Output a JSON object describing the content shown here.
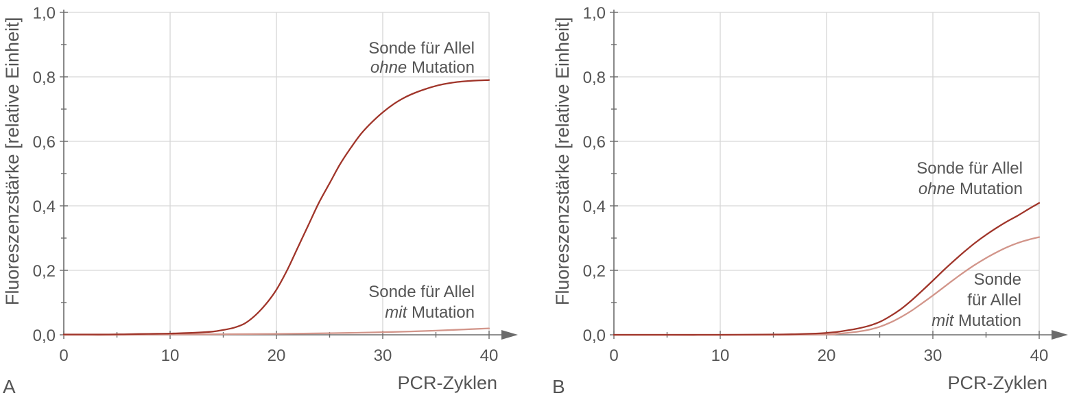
{
  "colors": {
    "axis": "#6b6b6b",
    "grid": "#d6d6d6",
    "text": "#555555",
    "series_ohne": "#a0352a",
    "series_mit": "#d2958a"
  },
  "chart_data": [
    {
      "type": "line",
      "panel_label": "A",
      "xlabel": "PCR-Zyklen",
      "ylabel": "Fluoreszenzstärke [relative Einheit]",
      "xlim": [
        0,
        40
      ],
      "ylim": [
        0,
        1.0
      ],
      "x_ticks": [
        "0",
        "10",
        "20",
        "30",
        "40"
      ],
      "y_ticks": [
        "0,0",
        "0,2",
        "0,4",
        "0,6",
        "0,8",
        "1,0"
      ],
      "grid": true,
      "series": [
        {
          "key": "ohne",
          "annotation": [
            "Sonde für Allel",
            "ohne",
            "Mutation"
          ],
          "x": [
            0,
            2,
            4,
            6,
            8,
            10,
            12,
            14,
            15,
            16,
            17,
            18,
            19,
            20,
            21,
            22,
            23,
            24,
            25,
            26,
            27,
            28,
            29,
            30,
            31,
            32,
            33,
            34,
            35,
            36,
            37,
            38,
            39,
            40
          ],
          "y": [
            0.001,
            0.001,
            0.001,
            0.002,
            0.003,
            0.004,
            0.006,
            0.01,
            0.015,
            0.022,
            0.035,
            0.06,
            0.095,
            0.14,
            0.2,
            0.27,
            0.34,
            0.41,
            0.47,
            0.53,
            0.58,
            0.625,
            0.66,
            0.69,
            0.715,
            0.735,
            0.75,
            0.762,
            0.772,
            0.779,
            0.784,
            0.787,
            0.789,
            0.79
          ]
        },
        {
          "key": "mit",
          "annotation": [
            "Sonde für Allel",
            "mit",
            "Mutation"
          ],
          "x": [
            0,
            5,
            10,
            15,
            20,
            25,
            30,
            35,
            40
          ],
          "y": [
            0.0,
            0.0,
            0.001,
            0.002,
            0.003,
            0.005,
            0.008,
            0.013,
            0.02
          ]
        }
      ]
    },
    {
      "type": "line",
      "panel_label": "B",
      "xlabel": "PCR-Zyklen",
      "ylabel": "Fluoreszenzstärke [relative Einheit]",
      "xlim": [
        0,
        40
      ],
      "ylim": [
        0,
        1.0
      ],
      "x_ticks": [
        "0",
        "10",
        "20",
        "30",
        "40"
      ],
      "y_ticks": [
        "0,0",
        "0,2",
        "0,4",
        "0,6",
        "0,8",
        "1,0"
      ],
      "grid": true,
      "series": [
        {
          "key": "ohne",
          "annotation": [
            "Sonde für Allel",
            "ohne",
            "Mutation"
          ],
          "x": [
            0,
            5,
            10,
            15,
            17,
            19,
            20,
            21,
            22,
            23,
            24,
            25,
            26,
            27,
            28,
            29,
            30,
            31,
            32,
            33,
            34,
            35,
            36,
            37,
            38,
            39,
            40
          ],
          "y": [
            0.0,
            0.0,
            0.0,
            0.001,
            0.002,
            0.004,
            0.006,
            0.009,
            0.014,
            0.02,
            0.028,
            0.04,
            0.058,
            0.08,
            0.107,
            0.137,
            0.168,
            0.2,
            0.23,
            0.259,
            0.286,
            0.31,
            0.332,
            0.352,
            0.37,
            0.39,
            0.409
          ]
        },
        {
          "key": "mit",
          "annotation": [
            "Sonde",
            "für Allel",
            "mit",
            "Mutation"
          ],
          "x": [
            0,
            5,
            10,
            15,
            20,
            21,
            22,
            23,
            24,
            25,
            26,
            27,
            28,
            29,
            30,
            31,
            32,
            33,
            34,
            35,
            36,
            37,
            38,
            39,
            40
          ],
          "y": [
            0.0,
            0.0,
            0.0,
            0.0,
            0.001,
            0.003,
            0.006,
            0.01,
            0.016,
            0.025,
            0.038,
            0.055,
            0.075,
            0.098,
            0.122,
            0.147,
            0.172,
            0.196,
            0.218,
            0.238,
            0.256,
            0.272,
            0.285,
            0.295,
            0.303
          ]
        }
      ]
    }
  ]
}
